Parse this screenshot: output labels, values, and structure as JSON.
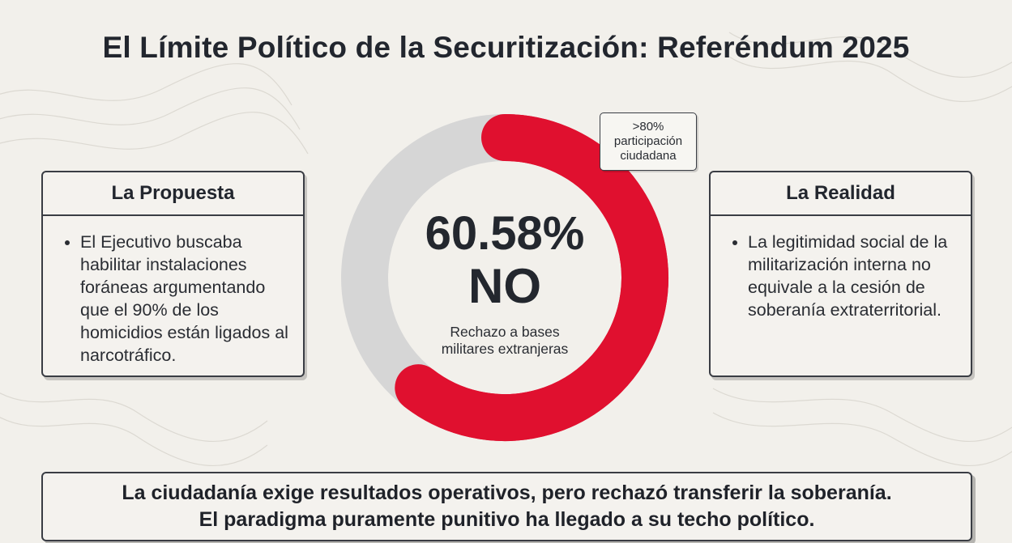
{
  "title": "El Límite Político de la Securitización: Referéndum 2025",
  "left_card": {
    "heading": "La Propuesta",
    "bullet": "El Ejecutivo buscaba habilitar instalaciones foráneas argumentando que el 90% de los homicidios están ligados al narcotráfico."
  },
  "right_card": {
    "heading": "La Realidad",
    "bullet": "La legitimidad social de la militarización interna no equivale a la cesión de soberanía extraterritorial."
  },
  "badge": {
    "line1": ">80%",
    "line2": "participación",
    "line3": "ciudadana"
  },
  "center": {
    "percent": "60.58%",
    "answer": "NO",
    "caption_line1": "Rechazo a bases",
    "caption_line2": "militares extranjeras"
  },
  "banner": {
    "line1": "La ciudadanía exige resultados operativos, pero rechazó transferir la soberanía.",
    "line2": "El paradigma puramente punitivo ha llegado a su techo político."
  },
  "colors": {
    "accent": "#e0102f",
    "track": "#d6d6d6",
    "text": "#22262e",
    "background": "#f2f0eb"
  },
  "chart_data": {
    "type": "pie",
    "subtype": "donut",
    "title": "",
    "slices": [
      {
        "label": "NO",
        "value": 60.58,
        "color": "#e0102f"
      },
      {
        "label": "",
        "value": 39.42,
        "color": "#d6d6d6"
      }
    ]
  }
}
